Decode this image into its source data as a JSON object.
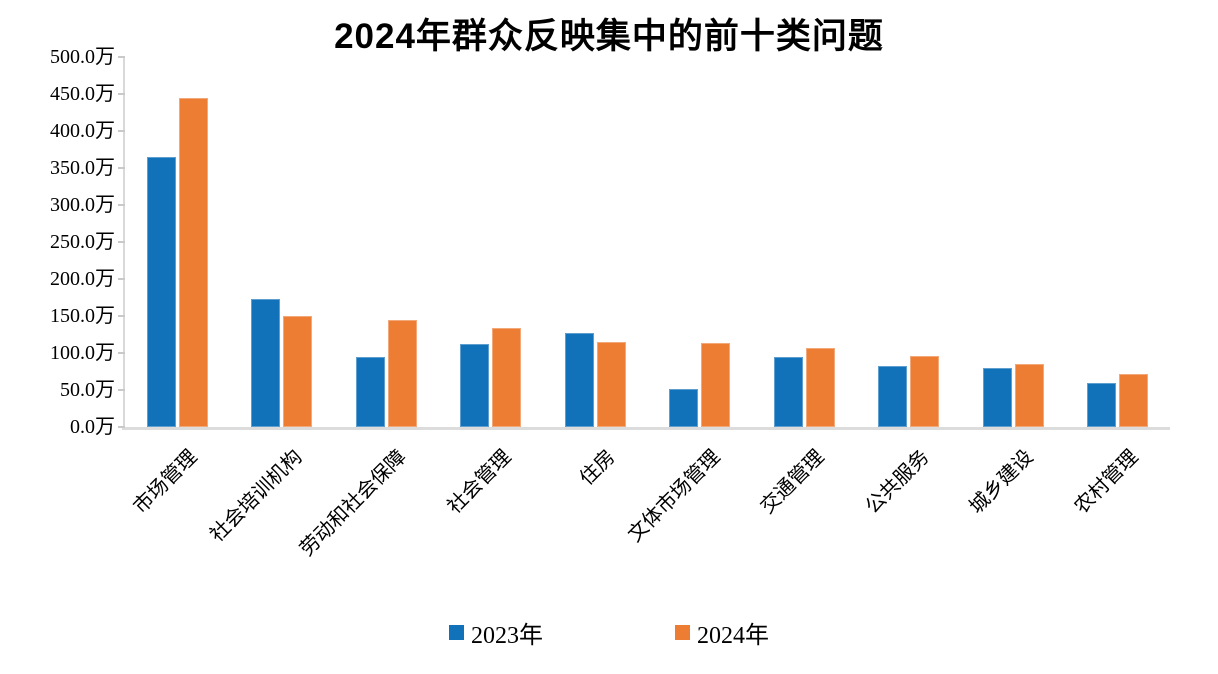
{
  "title": "2024年群众反映集中的前十类问题",
  "colors": {
    "series_2023": "#1272b9",
    "series_2023_edge": "#5e9fd0",
    "series_2024": "#ec7d33",
    "series_2024_edge": "#f2a878",
    "axis_line": "#d9d9d9",
    "text": "#000000",
    "background": "#ffffff"
  },
  "chart_data": {
    "type": "bar",
    "title": "2024年群众反映集中的前十类问题",
    "categories": [
      "市场管理",
      "社会培训机构",
      "劳动和社会保障",
      "社会管理",
      "住房",
      "文体市场管理",
      "交通管理",
      "公共服务",
      "城乡建设",
      "农村管理"
    ],
    "series": [
      {
        "name": "2023年",
        "color": "#1272b9",
        "values": [
          365,
          173,
          95,
          112,
          127,
          52,
          94,
          83,
          80,
          60
        ]
      },
      {
        "name": "2024年",
        "color": "#ec7d33",
        "values": [
          445,
          150,
          144,
          134,
          115,
          114,
          107,
          96,
          85,
          72
        ]
      }
    ],
    "xlabel": "",
    "ylabel": "",
    "unit": "万",
    "ylim": [
      0,
      500
    ],
    "y_tick_step": 50,
    "y_tick_labels": [
      "0.0万",
      "50.0万",
      "100.0万",
      "150.0万",
      "200.0万",
      "250.0万",
      "300.0万",
      "350.0万",
      "400.0万",
      "450.0万",
      "500.0万"
    ],
    "grid": false,
    "legend_position": "bottom",
    "category_label_rotation_deg": 45
  },
  "legend": {
    "items": [
      {
        "label": "2023年",
        "color": "#1272b9"
      },
      {
        "label": "2024年",
        "color": "#ec7d33"
      }
    ]
  }
}
